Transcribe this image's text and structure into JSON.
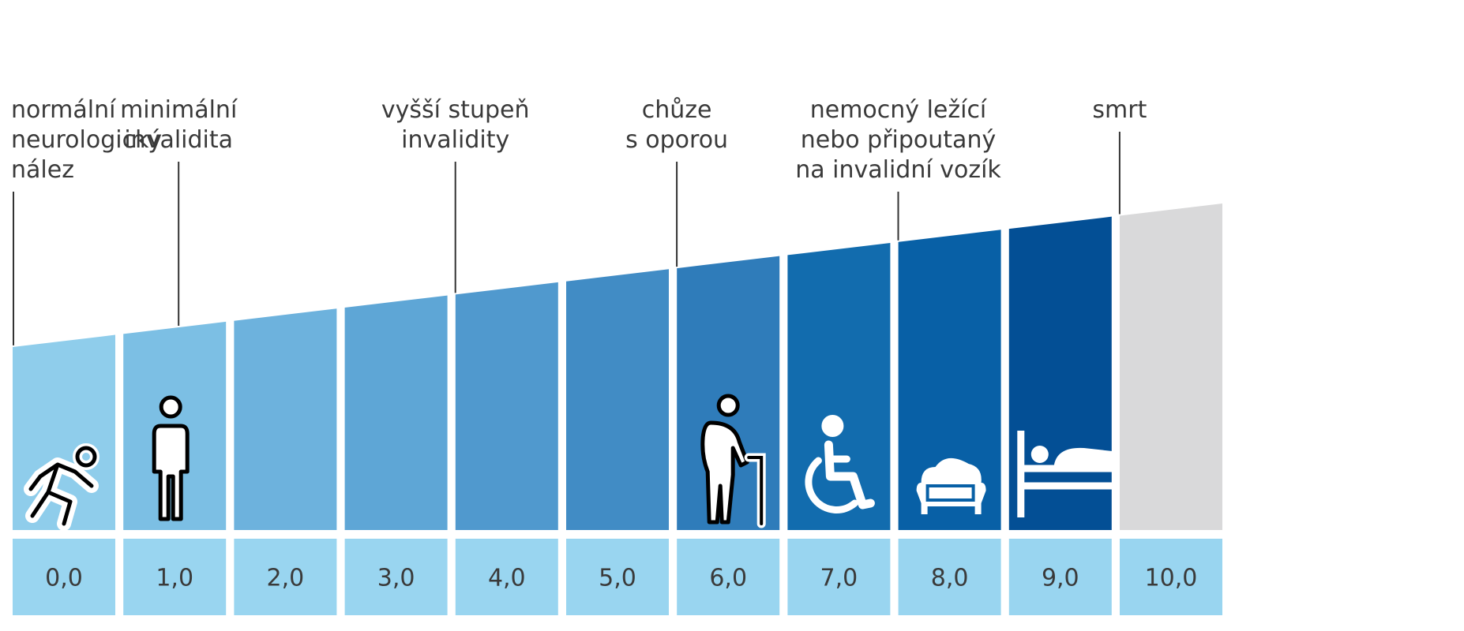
{
  "levels": [
    {
      "value": "0,0",
      "color": "#8fcdeb",
      "icon": "running-person-icon"
    },
    {
      "value": "1,0",
      "color": "#7cbfe4",
      "icon": "standing-person-icon"
    },
    {
      "value": "2,0",
      "color": "#6db2dd",
      "icon": ""
    },
    {
      "value": "3,0",
      "color": "#5ea6d6",
      "icon": ""
    },
    {
      "value": "4,0",
      "color": "#5099ce",
      "icon": ""
    },
    {
      "value": "5,0",
      "color": "#418cc5",
      "icon": ""
    },
    {
      "value": "6,0",
      "color": "#2f7cba",
      "icon": "walking-with-cane-icon"
    },
    {
      "value": "7,0",
      "color": "#126cae",
      "icon": "wheelchair-icon"
    },
    {
      "value": "8,0",
      "color": "#0860a6",
      "icon": "armchair-icon"
    },
    {
      "value": "9,0",
      "color": "#034f95",
      "icon": "bed-icon"
    },
    {
      "value": "10,0",
      "color": "#d9d9da",
      "icon": ""
    }
  ],
  "annotations": [
    {
      "text": "normální\nneurologický\nnález",
      "level": 0
    },
    {
      "text": "minimální\ninvalidita",
      "level": 1
    },
    {
      "text": "vyšší stupeň\ninvalidity",
      "level": 3.5
    },
    {
      "text": "chůze\ns oporou",
      "level": 5.5
    },
    {
      "text": "nemocný ležící\nnebo připoutaný\nna invalidní vozík",
      "level": 7.5
    },
    {
      "text": "smrt",
      "level": 9.5
    }
  ],
  "colors": {
    "value_box": "#99d5f0",
    "label_text": "#3a3a3a",
    "leader_line": "#333333"
  }
}
